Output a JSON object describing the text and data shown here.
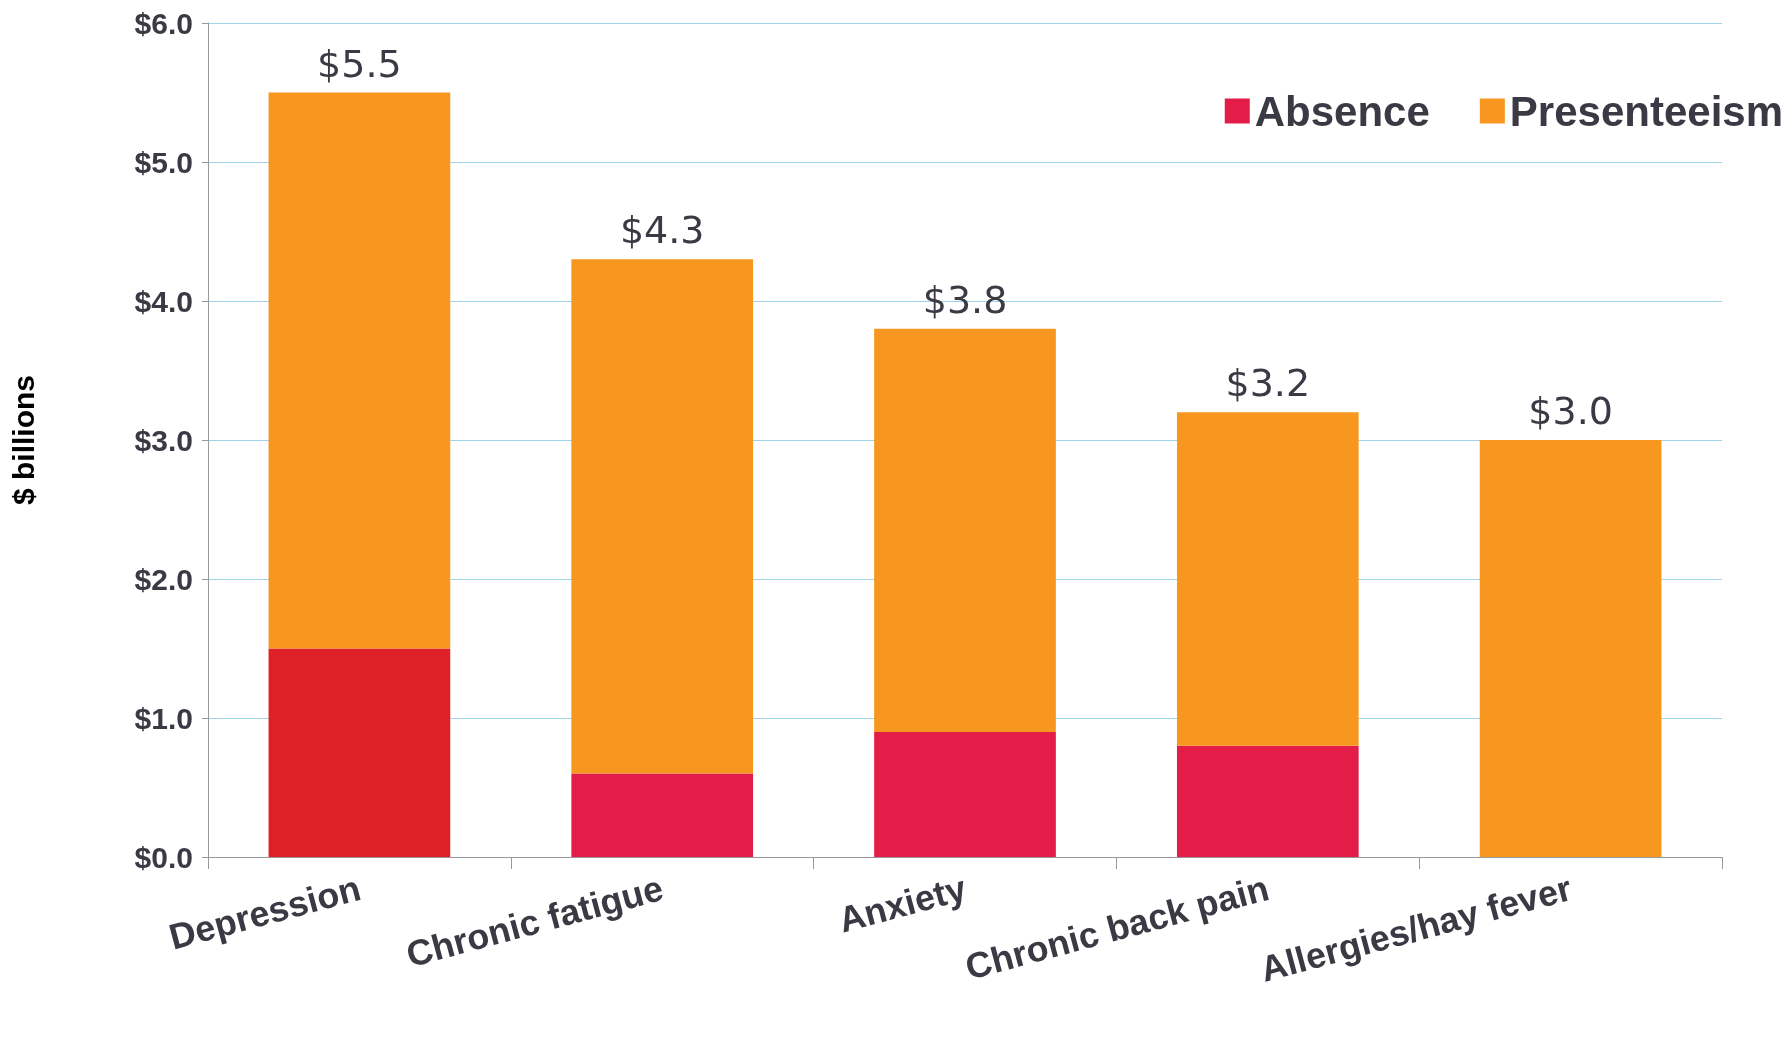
{
  "chart_data": {
    "type": "bar",
    "stacked": true,
    "ylabel": "$ billions",
    "categories": [
      "Depression",
      "Chronic fatigue",
      "Anxiety",
      "Chronic back pain",
      "Allergies/hay fever"
    ],
    "series": [
      {
        "name": "Absence",
        "color": "#e31c48",
        "colors": [
          "#e02027",
          "#e31c48",
          "#e31c48",
          "#e31c48",
          "#e31c48"
        ],
        "values": [
          1.5,
          0.6,
          0.9,
          0.8,
          0
        ]
      },
      {
        "name": "Presenteeism",
        "color": "#f7971f",
        "values": [
          4.0,
          3.7,
          2.9,
          2.4,
          3.0
        ]
      }
    ],
    "totals": [
      "$5.5",
      "$4.3",
      "$3.8",
      "$3.2",
      "$3.0"
    ],
    "ylim": [
      0,
      6
    ],
    "yticks": [
      {
        "value": 0,
        "label": "$0.0"
      },
      {
        "value": 1,
        "label": "$1.0"
      },
      {
        "value": 2,
        "label": "$2.0"
      },
      {
        "value": 3,
        "label": "$3.0"
      },
      {
        "value": 4,
        "label": "$4.0"
      },
      {
        "value": 5,
        "label": "$5.0"
      },
      {
        "value": 6,
        "label": "$6.0"
      }
    ],
    "grid": "y",
    "legend": "top right"
  }
}
